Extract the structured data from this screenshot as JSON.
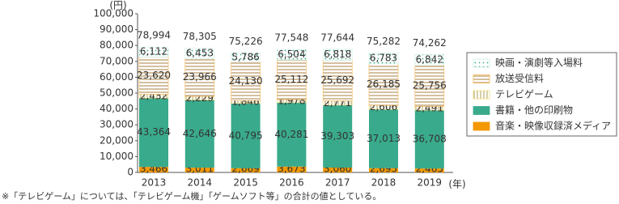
{
  "chart_data": {
    "type": "stacked-bar",
    "y_unit": "(円)",
    "x_unit": "(年)",
    "categories": [
      "2013",
      "2014",
      "2015",
      "2016",
      "2017",
      "2018",
      "2019"
    ],
    "series": [
      {
        "name": "音楽・映像収録済メディア",
        "color": "#f39800",
        "pattern": "none",
        "values": [
          3466,
          3011,
          2669,
          3673,
          3060,
          2695,
          2465
        ],
        "value_labels": [
          "3,466",
          "3,011",
          "2,669",
          "3,673",
          "3,060",
          "2,695",
          "2,465"
        ]
      },
      {
        "name": "書籍・他の印刷物",
        "color": "#3aaa8c",
        "pattern": "none",
        "values": [
          43364,
          42646,
          40795,
          40281,
          39303,
          37013,
          36708
        ],
        "value_labels": [
          "43,364",
          "42,646",
          "40,795",
          "40,281",
          "39,303",
          "37,013",
          "36,708"
        ]
      },
      {
        "name": "テレビゲーム",
        "color": "#f3df7a",
        "pattern": "vstripes",
        "values": [
          2432,
          2229,
          1846,
          1978,
          2771,
          2606,
          2491
        ],
        "value_labels": [
          "2,432",
          "2,229",
          "1,846",
          "1,978",
          "2,771",
          "2,606",
          "2,491"
        ]
      },
      {
        "name": "放送受信料",
        "color": "#f7b650",
        "pattern": "hstripes",
        "values": [
          23620,
          23966,
          24130,
          25112,
          25692,
          26185,
          25756
        ],
        "value_labels": [
          "23,620",
          "23,966",
          "24,130",
          "25,112",
          "25,692",
          "26,185",
          "25,756"
        ]
      },
      {
        "name": "映画・演劇等入場料",
        "color": "#cdeee6",
        "pattern": "dots",
        "values": [
          6112,
          6453,
          5786,
          6504,
          6818,
          6783,
          6842
        ],
        "value_labels": [
          "6,112",
          "6,453",
          "5,786",
          "6,504",
          "6,818",
          "6,783",
          "6,842"
        ]
      }
    ],
    "totals": {
      "values": [
        78994,
        78305,
        75226,
        77548,
        77644,
        75282,
        74262
      ],
      "value_labels": [
        "78,994",
        "78,305",
        "75,226",
        "77,548",
        "77,644",
        "75,282",
        "74,262"
      ]
    },
    "ylim": [
      0,
      100000
    ],
    "yticks": [
      0,
      {
        "value": 10000,
        "label": "10,000"
      },
      {
        "value": 20000,
        "label": "20,000"
      },
      {
        "value": 30000,
        "label": "30,000"
      },
      {
        "value": 40000,
        "label": "40,000"
      },
      {
        "value": 50000,
        "label": "50,000"
      },
      {
        "value": 60000,
        "label": "60,000"
      },
      {
        "value": 70000,
        "label": "70,000"
      },
      {
        "value": 80000,
        "label": "80,000"
      },
      {
        "value": 90000,
        "label": "90,000"
      },
      {
        "value": 100000,
        "label": "100,000"
      }
    ],
    "grid": false,
    "legend": "right",
    "footnote": "※「テレビゲーム」については、「テレビゲーム機」「ゲームソフト等」の合計の値としている。"
  }
}
